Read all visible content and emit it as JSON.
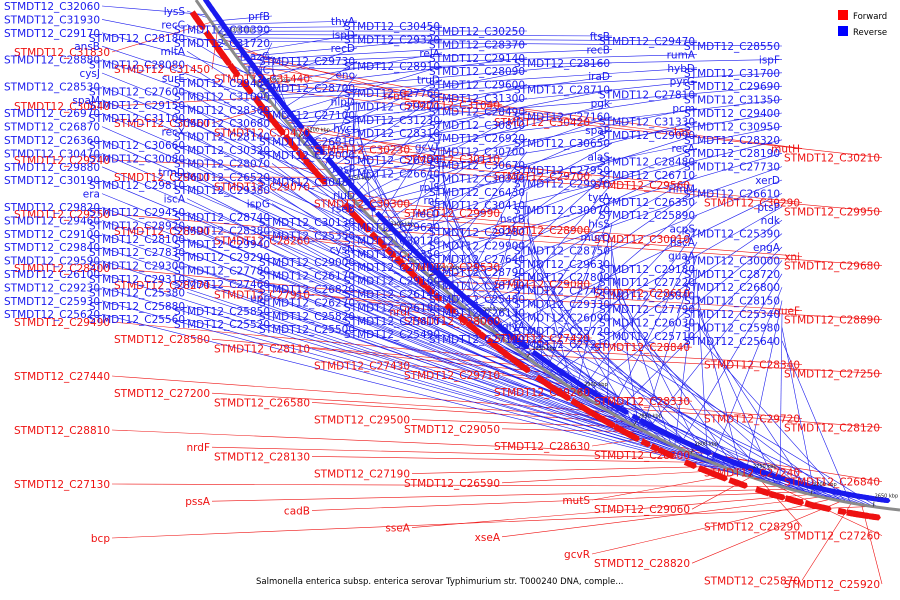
{
  "caption": "Salmonella enterica subsp. enterica serovar Typhimurium str. T000240 DNA, comple...",
  "legend": {
    "forward": {
      "label": "Forward",
      "color": "#ff0000"
    },
    "reverse": {
      "label": "Reverse",
      "color": "#0000ff"
    }
  },
  "colors": {
    "forward": "#ee1111",
    "reverse": "#1a1aee",
    "backbone": "#888888"
  },
  "ticks": [
    "3300 kbp",
    "3250 kbp",
    "3200 kbp",
    "3150 kbp",
    "3100 kbp",
    "3050 kbp",
    "3000 kbp",
    "2950 kbp",
    "2900 kbp",
    "2850 kbp",
    "2800 kbp",
    "2750 kbp",
    "2700 kbp",
    "2650 kbp"
  ],
  "genes_red": [
    "STMDT12_C31830",
    "STMDT12_C31450",
    "STMDT12_C31440",
    "rsmE",
    "STMDT12_C31040",
    "STMDT12_C30420",
    "tas",
    "mutH",
    "STMDT12_C30210",
    "STMDT12_C30640",
    "STMDT12_C30560",
    "STMDT12_C30470",
    "STMDT12_C30230",
    "STMDT12_C30110",
    "STMDT12_C29700",
    "STMDT12_C29560",
    "STMDT12_C30290",
    "STMDT12_C29950",
    "STMDT12_C29240",
    "STMDT12_C29610",
    "STMDT12_C29070",
    "STMDT12_C30300",
    "STMDT12_C29990",
    "STMDT12_C28900",
    "STMDT12_C30010",
    "xni",
    "STMDT12_C29680",
    "STMDT12_C29250",
    "STMDT12_C28590",
    "STMDT12_C28260",
    "fucI",
    "STMDT12_C29530",
    "STMDT12_C29080",
    "STMDT12_C28610",
    "queF",
    "STMDT12_C28890",
    "STMDT12_C28400",
    "STMDT12_C28270",
    "STMDT12_C27910",
    "nrdI",
    "STMDT12_C28060",
    "STMDT12_C27420",
    "STMDT12_C28840",
    "STMDT12_C28340",
    "STMDT12_C27250",
    "STMDT12_C29490",
    "STMDT12_C28580",
    "STMDT12_C28110",
    "STMDT12_C27430",
    "STMDT12_C29710",
    "STMDT12_C29260",
    "STMDT12_C28330",
    "STMDT12_C29720",
    "STMDT12_C28120",
    "STMDT12_C27440",
    "STMDT12_C27200",
    "STMDT12_C26580",
    "STMDT12_C29500",
    "STMDT12_C29050",
    "STMDT12_C28630",
    "STMDT12_C28300",
    "STMDT12_C27240",
    "STMDT12_C26840",
    "STMDT12_C28810",
    "nrdF",
    "STMDT12_C28130",
    "STMDT12_C27190",
    "STMDT12_C26590",
    "mutS",
    "STMDT12_C29060",
    "STMDT12_C28290",
    "STMDT12_C27260",
    "STMDT12_C27130",
    "pssA",
    "cadB",
    "sseA",
    "xseA",
    "gcvR",
    "STMDT12_C28820",
    "STMDT12_C25870",
    "STMDT12_C25920",
    "bcp"
  ],
  "genes_blue": [
    "STMDT12_C32060",
    "lysS",
    "prfB",
    "thyA",
    "STMDT12_C30450",
    "STMDT12_C30250",
    "ftsB",
    "STMDT12_C29470",
    "STMDT12_C28550",
    "STMDT12_C31930",
    "recC",
    "STMDT12_C30390",
    "ispD",
    "STMDT12_C29320",
    "STMDT12_C28370",
    "recB",
    "rumA",
    "ispF",
    "STMDT12_C29170",
    "STMDT12_C28180",
    "STMDT12_C31720",
    "recD",
    "relA",
    "STMDT12_C29140",
    "STMDT12_C28160",
    "hybD",
    "STMDT12_C31700",
    "ansB",
    "mltA",
    "mazG",
    "STMDT12_C29730",
    "STMDT12_C28910",
    "STMDT12_C28090",
    "iraD",
    "pyrG",
    "STMDT12_C29690",
    "STMDT12_C28880",
    "STMDT12_C28080",
    "truC",
    "eno",
    "truD",
    "STMDT12_C29600",
    "STMDT12_C28710",
    "STMDT12_C27810",
    "STMDT12_C31350",
    "cysJ",
    "surE",
    "STMDT12_C29480",
    "STMDT12_C28700",
    "STMDT12_C27760",
    "STMDT12_C31300",
    "pgk",
    "pcm",
    "STMDT12_C29400",
    "STMDT12_C28530",
    "STMDT12_C27600",
    "STMDT12_C31090",
    "nlpD",
    "STMDT12_C29270",
    "STMDT12_C28490",
    "STMDT12_C27160",
    "STMDT12_C31330",
    "STMDT12_C30950",
    "spaM",
    "STMDT12_C29150",
    "STMDT12_C28360",
    "STMDT12_C27100",
    "STMDT12_C31230",
    "STMDT12_C30810",
    "spaP",
    "STMDT12_C29090",
    "STMDT12_C28320",
    "STMDT12_C26970",
    "STMDT12_C31100",
    "STMDT12_C30680",
    "hycI",
    "STMDT12_C28310",
    "STMDT12_C26920",
    "STMDT12_C30650",
    "recA",
    "STMDT12_C28190",
    "STMDT12_C26870",
    "recX",
    "STMDT12_C28140",
    "STMDT12_C26810",
    "gcvT",
    "STMDT12_C30700",
    "alaS",
    "STMDT12_C28480",
    "STMDT12_C27730",
    "STMDT12_C26360",
    "STMDT12_C30660",
    "STMDT12_C30320",
    "STMDT12_C28000",
    "STMDT12_C26790",
    "STMDT12_C30670",
    "STMDT12_C27950",
    "STMDT12_C26710",
    "xerD",
    "STMDT12_C30470",
    "STMDT12_C30080",
    "STMDT12_C28070",
    "rpsP",
    "STMDT12_C26640",
    "STMDT12_C30330",
    "STMDT12_C29970",
    "rimM",
    "STMDT12_C26610",
    "STMDT12_C29880",
    "trmD",
    "STMDT12_C26520",
    "STMDT12_C30480",
    "rplS",
    "STMDT12_C26430",
    "tyrA",
    "STMDT12_C26350",
    "ptsP",
    "STMDT12_C30190",
    "STMDT12_C29810",
    "STMDT12_C29380",
    "rluD",
    "rnc",
    "STMDT12_C30410",
    "STMDT12_C30070",
    "STMDT12_C25890",
    "ndk",
    "era",
    "iscA",
    "ispG",
    "rseB",
    "recO",
    "hscB",
    "hisS",
    "acpS",
    "STMDT12_C25390",
    "STMDT12_C29820",
    "STMDT12_C29450",
    "STMDT12_C28740",
    "STMDT12_C30130",
    "STMDT12_C29620",
    "STMDT12_C29280",
    "murQ",
    "hscA",
    "engA",
    "STMDT12_C29460",
    "STMDT12_C28920",
    "STMDT12_C28380",
    "STMDT12_C25350",
    "STMDT12_C30120",
    "STMDT12_C29900",
    "STMDT12_C28750",
    "guaA",
    "STMDT12_C30000",
    "STMDT12_C29100",
    "STMDT12_C28100",
    "STMDT12_C29940",
    "cysN",
    "STMDT12_C29350",
    "STMDT12_C27640",
    "STMDT12_C29630",
    "STMDT12_C29180",
    "STMDT12_C28720",
    "STMDT12_C29840",
    "STMDT12_C27830",
    "STMDT12_C29290",
    "STMDT12_C29000",
    "STMDT12_C27110",
    "STMDT12_C28790",
    "STMDT12_C27800",
    "STMDT12_C27220",
    "STMDT12_C26800",
    "STMDT12_C29590",
    "STMDT12_C29300",
    "STMDT12_C27780",
    "STMDT12_C26170",
    "STMDT12_C29160",
    "STMDT12_C28730",
    "STMDT12_C27450",
    "STMDT12_C25840",
    "STMDT12_C28150",
    "STMDT12_C26100",
    "STMDT12_C29310",
    "STMDT12_C27460",
    "STMDT12_C26820",
    "STMDT12_C26140",
    "STMDT12_C25480",
    "STMDT12_C29330",
    "STMDT12_C27790",
    "STMDT12_C25340",
    "STMDT12_C29230",
    "STMDT12_C25380",
    "upp",
    "STMDT12_C26270",
    "STMDT12_C26180",
    "STMDT12_C26130",
    "STMDT12_C26090",
    "STMDT12_C26030",
    "STMDT12_C25980",
    "STMDT12_C25930",
    "STMDT12_C25880",
    "STMDT12_C25850",
    "STMDT12_C25820",
    "STMDT12_C25810",
    "glyA",
    "STMDT12_C25720",
    "STMDT12_C25710",
    "STMDT12_C25640",
    "STMDT12_C25620",
    "STMDT12_C25560",
    "STMDT12_C25520",
    "STMDT12_C25500",
    "STMDT12_C25490",
    "STMDT12_C27120",
    "STMDT12_C27210"
  ]
}
